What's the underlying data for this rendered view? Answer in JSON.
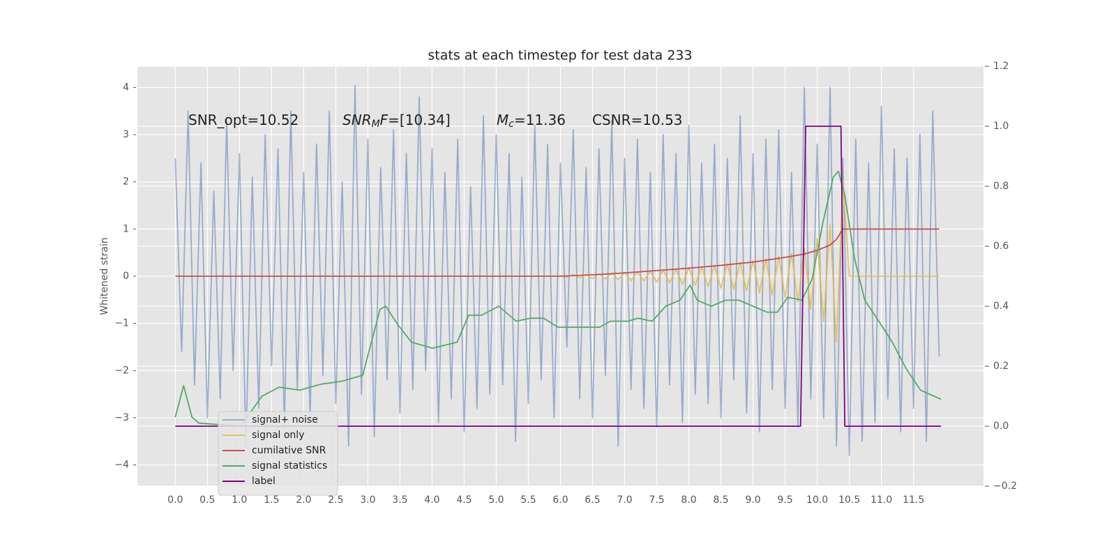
{
  "chart_data": {
    "type": "line",
    "title": "stats at each timestep for test data 233",
    "y_label": "Whitened strain",
    "xlim": [
      -0.59,
      12.59
    ],
    "ylim": [
      -4.45,
      4.45
    ],
    "y2lim": [
      -0.2,
      1.2
    ],
    "grid": true,
    "legend_position": "lower left",
    "xticks": [
      {
        "value": 0,
        "label": "0.0"
      },
      0.5,
      {
        "value": 1,
        "label": "1.0"
      },
      1.5,
      {
        "value": 2,
        "label": "2.0"
      },
      2.5,
      {
        "value": 3,
        "label": "3.0"
      },
      3.5,
      {
        "value": 4,
        "label": "4.0"
      },
      4.5,
      {
        "value": 5,
        "label": "5.0"
      },
      5.5,
      {
        "value": 6,
        "label": "6.0"
      },
      6.5,
      {
        "value": 7,
        "label": "7.0"
      },
      7.5,
      {
        "value": 8,
        "label": "8.0"
      },
      8.5,
      {
        "value": 9,
        "label": "9.0"
      },
      9.5,
      {
        "value": 10,
        "label": "10.0"
      },
      10.5,
      {
        "value": 11,
        "label": "11.0"
      },
      11.5
    ],
    "yticks": [
      {
        "value": -4,
        "label": "−4"
      },
      {
        "value": -3,
        "label": "−3"
      },
      {
        "value": -2,
        "label": "−2"
      },
      {
        "value": -1,
        "label": "−1"
      },
      0,
      1,
      2,
      3,
      4
    ],
    "y2ticks": [
      {
        "value": -0.2,
        "label": "−0.2"
      },
      {
        "value": 0,
        "label": "0.0"
      },
      0.2,
      0.4,
      0.6,
      0.8,
      {
        "value": 1,
        "label": "1.0"
      },
      1.2
    ],
    "annotations": [
      {
        "parts": [
          {
            "text": "SNR_opt=10.52"
          }
        ]
      },
      {
        "parts": [
          {
            "text": "SNR",
            "italic": true
          },
          {
            "text": "M",
            "italic": true,
            "sub": true
          },
          {
            "text": "F",
            "italic": true
          },
          {
            "text": "=[10.34]"
          }
        ]
      },
      {
        "parts": [
          {
            "text": "M",
            "italic": true
          },
          {
            "text": "c",
            "italic": true,
            "sub": true
          },
          {
            "text": "=11.36"
          }
        ]
      },
      {
        "parts": [
          {
            "text": "CSNR=10.53"
          }
        ]
      }
    ],
    "series": [
      {
        "name": "signal+ noise",
        "color": "#4c72b0",
        "opacity": 0.5,
        "x": [
          0,
          0.1,
          0.2,
          0.3,
          0.4,
          0.5,
          0.6,
          0.7,
          0.8,
          0.9,
          1,
          1.1,
          1.2,
          1.3,
          1.4,
          1.5,
          1.6,
          1.7,
          1.8,
          1.9,
          2,
          2.1,
          2.2,
          2.3,
          2.4,
          2.5,
          2.6,
          2.7,
          2.8,
          2.9,
          3,
          3.1,
          3.2,
          3.3,
          3.4,
          3.5,
          3.6,
          3.7,
          3.8,
          3.9,
          4,
          4.1,
          4.2,
          4.3,
          4.4,
          4.5,
          4.6,
          4.7,
          4.8,
          4.9,
          5,
          5.1,
          5.2,
          5.3,
          5.4,
          5.5,
          5.6,
          5.7,
          5.8,
          5.9,
          6,
          6.1,
          6.2,
          6.3,
          6.4,
          6.5,
          6.6,
          6.7,
          6.8,
          6.9,
          7,
          7.1,
          7.2,
          7.3,
          7.4,
          7.5,
          7.6,
          7.7,
          7.8,
          7.9,
          8,
          8.1,
          8.2,
          8.3,
          8.4,
          8.5,
          8.6,
          8.7,
          8.8,
          8.9,
          9,
          9.1,
          9.2,
          9.3,
          9.4,
          9.5,
          9.6,
          9.7,
          9.8,
          9.9,
          10,
          10.1,
          10.2,
          10.3,
          10.4,
          10.5,
          10.6,
          10.7,
          10.8,
          10.9,
          11,
          11.1,
          11.2,
          11.3,
          11.4,
          11.5,
          11.6,
          11.7,
          11.8,
          11.9
        ],
        "values": [
          2.5,
          -1.6,
          3.5,
          -2.3,
          2.4,
          -3.0,
          1.8,
          -2.6,
          3.3,
          -2.0,
          2.6,
          -3.6,
          2.1,
          -2.8,
          3.0,
          -1.9,
          2.7,
          -3.2,
          3.5,
          -2.4,
          2.2,
          -3.0,
          2.8,
          -2.1,
          3.5,
          -2.7,
          2.0,
          -3.6,
          4.05,
          -2.5,
          2.9,
          -3.4,
          2.3,
          -2.2,
          3.1,
          -2.9,
          2.6,
          -2.4,
          3.8,
          -2.0,
          2.7,
          -3.1,
          2.2,
          -2.6,
          2.9,
          -3.3,
          1.9,
          -2.8,
          3.4,
          -2.5,
          3.0,
          -2.3,
          2.6,
          -3.5,
          2.1,
          -2.7,
          3.2,
          -2.2,
          2.8,
          -3.0,
          2.4,
          -1.5,
          3.1,
          -2.6,
          2.3,
          -3.0,
          2.7,
          -2.1,
          3.3,
          -3.6,
          2.5,
          -2.4,
          2.9,
          -2.8,
          2.2,
          -3.2,
          3.0,
          -2.3,
          2.6,
          -3.1,
          3.2,
          -2.5,
          2.4,
          -2.7,
          2.8,
          -3.0,
          2.5,
          -2.2,
          3.4,
          -2.9,
          2.6,
          -3.3,
          2.9,
          -2.4,
          3.1,
          -2.8,
          2.2,
          -3.2,
          4.0,
          -2.6,
          2.8,
          -3.0,
          4.0,
          -3.6,
          2.5,
          -3.8,
          2.9,
          -3.5,
          2.4,
          -3.1,
          3.6,
          -2.6,
          2.7,
          -3.3,
          2.5,
          -2.8,
          3.0,
          -3.5,
          3.5,
          -1.7
        ]
      },
      {
        "name": "signal only",
        "color": "#e8b84a",
        "opacity": 0.85,
        "x": [
          6,
          6.1,
          6.2,
          6.3,
          6.4,
          6.5,
          6.6,
          6.7,
          6.8,
          6.9,
          7,
          7.1,
          7.2,
          7.3,
          7.4,
          7.5,
          7.6,
          7.7,
          7.8,
          7.9,
          8,
          8.1,
          8.2,
          8.3,
          8.4,
          8.5,
          8.6,
          8.7,
          8.8,
          8.9,
          9,
          9.1,
          9.2,
          9.3,
          9.4,
          9.5,
          9.6,
          9.7,
          9.8,
          9.9,
          10,
          10.1,
          10.2,
          10.3,
          10.4,
          10.5,
          11.9
        ],
        "values": [
          0.01,
          -0.02,
          0.03,
          -0.03,
          0.04,
          -0.05,
          0.05,
          -0.06,
          0.07,
          -0.07,
          0.08,
          -0.09,
          0.09,
          -0.1,
          0.11,
          -0.12,
          0.13,
          -0.14,
          0.15,
          -0.17,
          0.18,
          -0.19,
          0.2,
          -0.22,
          0.23,
          -0.25,
          0.26,
          -0.28,
          0.29,
          -0.31,
          0.33,
          -0.35,
          0.37,
          -0.4,
          0.42,
          -0.45,
          0.49,
          -0.54,
          0.6,
          -0.7,
          0.8,
          -0.95,
          1.1,
          -1.4,
          2.0,
          0,
          0
        ]
      },
      {
        "name": "cumilative SNR",
        "color": "#c44e52",
        "opacity": 1,
        "x": [
          0,
          6,
          6.5,
          7,
          7.5,
          8,
          8.5,
          9,
          9.5,
          9.8,
          10,
          10.2,
          10.3,
          10.4,
          11.9
        ],
        "values": [
          0,
          0,
          0.03,
          0.07,
          0.12,
          0.17,
          0.23,
          0.3,
          0.4,
          0.47,
          0.55,
          0.66,
          0.78,
          1.0,
          1.0
        ]
      },
      {
        "name": "signal statistics",
        "color": "#55a868",
        "opacity": 1,
        "axis": "y2",
        "x": [
          0,
          0.13,
          0.26,
          0.37,
          1.02,
          1.35,
          1.62,
          1.94,
          2.27,
          2.6,
          2.92,
          3.19,
          3.28,
          3.46,
          3.68,
          4.01,
          4.39,
          4.57,
          4.77,
          5.04,
          5.31,
          5.53,
          5.74,
          5.96,
          6.4,
          6.61,
          6.78,
          7.05,
          7.21,
          7.43,
          7.64,
          7.86,
          8.02,
          8.13,
          8.35,
          8.57,
          8.78,
          9.0,
          9.22,
          9.38,
          9.54,
          9.76,
          9.92,
          10.09,
          10.25,
          10.33,
          10.43,
          10.58,
          10.74,
          10.96,
          11.17,
          11.39,
          11.61,
          11.82,
          11.93
        ],
        "values": [
          0.03,
          0.135,
          0.03,
          0.01,
          0.0,
          0.1,
          0.13,
          0.12,
          0.14,
          0.15,
          0.17,
          0.39,
          0.4,
          0.34,
          0.28,
          0.26,
          0.28,
          0.37,
          0.37,
          0.4,
          0.35,
          0.36,
          0.36,
          0.33,
          0.33,
          0.33,
          0.35,
          0.35,
          0.36,
          0.35,
          0.4,
          0.42,
          0.47,
          0.42,
          0.4,
          0.42,
          0.42,
          0.4,
          0.38,
          0.38,
          0.43,
          0.42,
          0.49,
          0.68,
          0.83,
          0.85,
          0.77,
          0.56,
          0.42,
          0.35,
          0.28,
          0.19,
          0.12,
          0.1,
          0.09
        ]
      },
      {
        "name": "label",
        "color": "#800080",
        "opacity": 1,
        "axis": "y2",
        "x": [
          0,
          9.74,
          9.82,
          10.37,
          10.43,
          11.93
        ],
        "values": [
          0,
          0,
          1,
          1,
          0,
          0
        ]
      }
    ]
  }
}
